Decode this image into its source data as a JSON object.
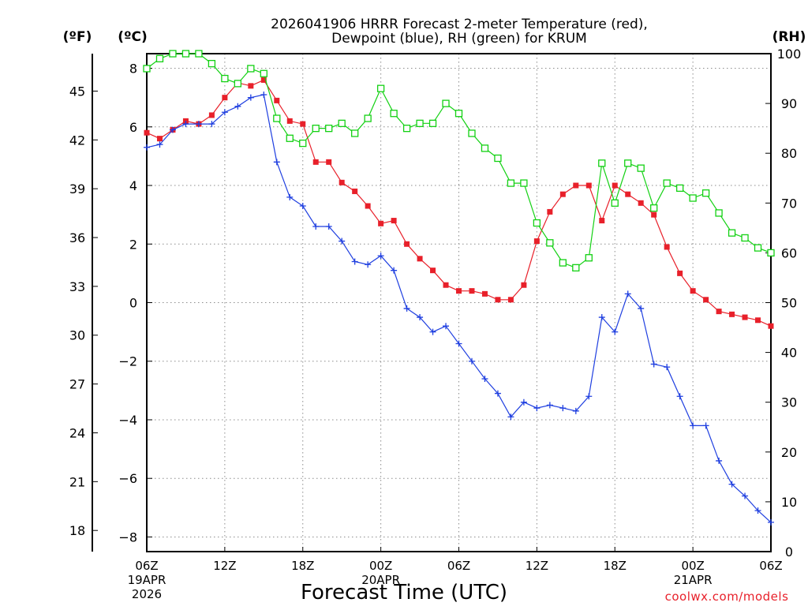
{
  "chart_data": {
    "type": "line",
    "title_line1": "2026041906 HRRR Forecast 2-meter Temperature (red),",
    "title_line2": "Dewpoint (blue), RH (green) for KRUM",
    "xlabel": "Forecast Time (UTC)",
    "credit": "coolwx.com/models",
    "units": {
      "fahrenheit": "(ºF)",
      "celsius": "(ºC)",
      "rh": "(RH)"
    },
    "colors": {
      "temperature": "#e8202a",
      "dewpoint": "#1f3fe0",
      "rh": "#13d113",
      "grid": "#8c8c8c"
    },
    "x_range": [
      0,
      48
    ],
    "xticks": [
      {
        "hour": 0,
        "label": "06Z",
        "date": "19APR",
        "year": "2026"
      },
      {
        "hour": 6,
        "label": "12Z"
      },
      {
        "hour": 12,
        "label": "18Z"
      },
      {
        "hour": 18,
        "label": "00Z",
        "date": "20APR"
      },
      {
        "hour": 24,
        "label": "06Z"
      },
      {
        "hour": 30,
        "label": "12Z"
      },
      {
        "hour": 36,
        "label": "18Z"
      },
      {
        "hour": 42,
        "label": "00Z",
        "date": "21APR"
      },
      {
        "hour": 48,
        "label": "06Z"
      }
    ],
    "y_celsius": {
      "range": [
        -8.5,
        8.5
      ],
      "ticks": [
        "−8",
        "−6",
        "−4",
        "−2",
        "0",
        "2",
        "4",
        "6",
        "8"
      ]
    },
    "y_fahrenheit": {
      "ticks": [
        "18",
        "21",
        "24",
        "27",
        "30",
        "33",
        "36",
        "39",
        "42",
        "45"
      ]
    },
    "y_rh": {
      "range": [
        0,
        100
      ],
      "ticks": [
        "0",
        "10",
        "20",
        "30",
        "40",
        "50",
        "60",
        "70",
        "80",
        "90",
        "100"
      ]
    },
    "series": [
      {
        "name": "Temperature",
        "unit": "C",
        "marker": "filled-square",
        "values": [
          5.8,
          5.6,
          5.9,
          6.2,
          6.1,
          6.4,
          7.0,
          7.5,
          7.4,
          7.6,
          6.9,
          6.2,
          6.1,
          4.8,
          4.8,
          4.1,
          3.8,
          3.3,
          2.7,
          2.8,
          2.0,
          1.5,
          1.1,
          0.6,
          0.4,
          0.4,
          0.3,
          0.1,
          0.1,
          0.6,
          2.1,
          3.1,
          3.7,
          4.0,
          4.0,
          2.8,
          4.0,
          3.7,
          3.4,
          3.0,
          1.9,
          1.0,
          0.4,
          0.1,
          -0.3,
          -0.4,
          -0.5,
          -0.6,
          -0.8
        ]
      },
      {
        "name": "Dewpoint",
        "unit": "C",
        "marker": "plus",
        "values": [
          5.3,
          5.4,
          5.9,
          6.1,
          6.1,
          6.1,
          6.5,
          6.7,
          7.0,
          7.1,
          4.8,
          3.6,
          3.3,
          2.6,
          2.6,
          2.1,
          1.4,
          1.3,
          1.6,
          1.1,
          -0.2,
          -0.5,
          -1.0,
          -0.8,
          -1.4,
          -2.0,
          -2.6,
          -3.1,
          -3.9,
          -3.4,
          -3.6,
          -3.5,
          -3.6,
          -3.7,
          -3.2,
          -0.5,
          -1.0,
          0.3,
          -0.2,
          -2.1,
          -2.2,
          -3.2,
          -4.2,
          -4.2,
          -5.4,
          -6.2,
          -6.6,
          -7.1,
          -7.5
        ]
      },
      {
        "name": "RH",
        "unit": "%",
        "marker": "open-square",
        "values": [
          97,
          99,
          100,
          100,
          100,
          98,
          95,
          94,
          97,
          96,
          87,
          83,
          82,
          85,
          85,
          86,
          84,
          87,
          93,
          88,
          85,
          86,
          86,
          90,
          88,
          84,
          81,
          79,
          74,
          74,
          66,
          62,
          58,
          57,
          59,
          78,
          70,
          78,
          77,
          69,
          74,
          73,
          71,
          72,
          68,
          64,
          63,
          61,
          60
        ]
      }
    ]
  }
}
